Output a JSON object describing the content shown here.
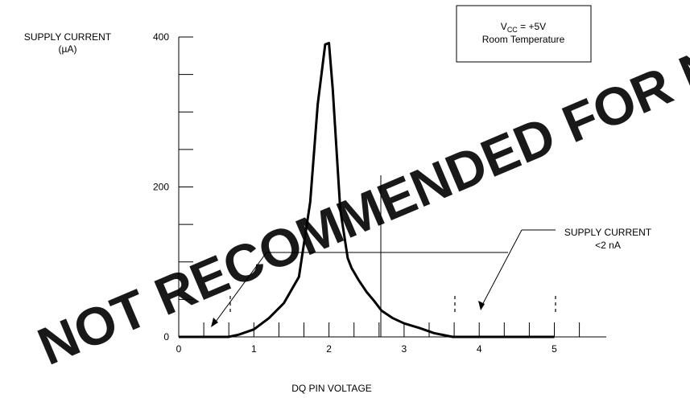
{
  "chart_data": {
    "type": "line",
    "ylabel_line1": "SUPPLY CURRENT",
    "ylabel_line2": "(µA)",
    "xlabel": "DQ PIN VOLTAGE",
    "xlim": [
      0,
      5.8
    ],
    "ylim": [
      0,
      400
    ],
    "x_ticks": [
      "0",
      "1",
      "2",
      "3",
      "4",
      "5"
    ],
    "y_ticks": [
      "0",
      "200",
      "400"
    ],
    "series": [
      {
        "x": [
          0,
          0.66,
          0.8,
          1.0,
          1.2,
          1.4,
          1.6,
          1.75,
          1.85,
          1.95,
          2.0,
          2.05,
          2.15,
          2.25,
          2.3,
          2.4,
          2.5,
          2.6,
          2.7,
          2.85,
          3.0,
          3.2,
          3.4,
          3.6,
          3.65,
          4.0,
          4.5,
          5.0
        ],
        "y": [
          0,
          0,
          3,
          10,
          25,
          45,
          80,
          180,
          310,
          390,
          392,
          330,
          170,
          105,
          92,
          75,
          60,
          48,
          35,
          25,
          18,
          12,
          5,
          1,
          0,
          0,
          0,
          0
        ]
      }
    ],
    "legend_box": {
      "line1_main": "V",
      "line1_sub": "CC",
      "line1_rest": " = +5V",
      "line2": "Room Temperature"
    },
    "annotation": {
      "line1": "SUPPLY CURRENT",
      "line2": "<2 nA"
    },
    "grid": false
  },
  "watermark": "NOT RECOMMENDED FOR NEW DESIGNS"
}
